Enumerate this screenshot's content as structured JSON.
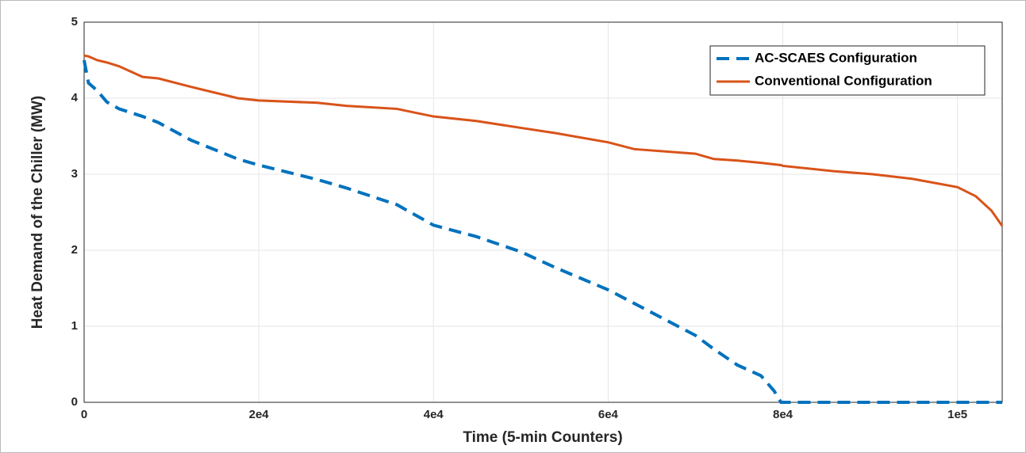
{
  "chart_data": {
    "type": "line",
    "xlabel": "Time (5-min Counters)",
    "ylabel": "Heat Demand of the Chiller (MW)",
    "x": [
      0,
      500,
      1500,
      2600,
      4000,
      6700,
      8500,
      12200,
      17600,
      20000,
      26700,
      30000,
      35800,
      40000,
      44900,
      50000,
      54000,
      60000,
      63000,
      70000,
      72100,
      74800,
      77500,
      79000,
      79800,
      80000,
      85800,
      90300,
      94800,
      100000,
      102100,
      103900,
      105120
    ],
    "series": [
      {
        "name": "AC-SCAES Configuration",
        "color": "#0072bd",
        "dashed": true,
        "values": [
          4.5,
          4.2,
          4.1,
          3.95,
          3.86,
          3.76,
          3.68,
          3.45,
          3.2,
          3.12,
          2.93,
          2.82,
          2.6,
          2.33,
          2.18,
          1.98,
          1.77,
          1.48,
          1.3,
          0.88,
          0.7,
          0.49,
          0.35,
          0.15,
          0,
          0,
          0,
          0,
          0,
          0,
          0,
          0,
          0
        ]
      },
      {
        "name": "Conventional Configuration",
        "color": "#d95319",
        "dashed": false,
        "values": [
          4.56,
          4.55,
          4.5,
          4.47,
          4.42,
          4.28,
          4.26,
          4.15,
          4.0,
          3.97,
          3.94,
          3.9,
          3.86,
          3.76,
          3.7,
          3.61,
          3.54,
          3.42,
          3.33,
          3.27,
          3.2,
          3.18,
          3.15,
          3.13,
          3.12,
          3.11,
          3.04,
          3.0,
          2.94,
          2.83,
          2.71,
          2.52,
          2.32
        ]
      }
    ],
    "xlim": [
      0,
      105120
    ],
    "xticks": [
      0,
      {
        "value": 20000,
        "label": "2e4"
      },
      {
        "value": 40000,
        "label": "4e4"
      },
      {
        "value": 60000,
        "label": "6e4"
      },
      {
        "value": 80000,
        "label": "8e4"
      },
      {
        "value": 100000,
        "label": "1e5"
      }
    ],
    "ylim": [
      0,
      5
    ],
    "yticks": [
      0,
      1,
      2,
      3,
      4,
      5
    ],
    "grid": true,
    "legend": "upper-right"
  }
}
